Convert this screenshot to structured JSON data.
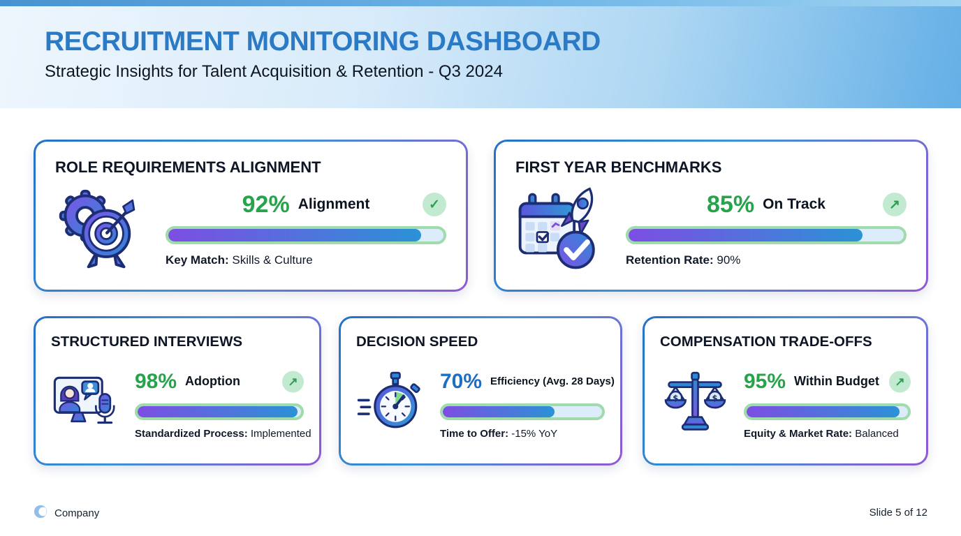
{
  "slide": {
    "title": "RECRUITMENT MONITORING DASHBOARD",
    "subtitle": "Strategic Insights for Talent Acquisition & Retention - Q3 2024"
  },
  "cards": [
    {
      "title": "ROLE REQUIREMENTS ALIGNMENT",
      "icon": "gear-target",
      "value": "92%",
      "value_color": "#27a34b",
      "label": "Alignment",
      "badge": "check",
      "progress": 92,
      "caption_bold": "Key Match:",
      "caption_text": "Skills & Culture"
    },
    {
      "title": "FIRST YEAR BENCHMARKS",
      "icon": "calendar-rocket",
      "value": "85%",
      "value_color": "#27a34b",
      "label": "On Track",
      "badge": "arrow-up-right",
      "progress": 85,
      "caption_bold": "Retention Rate:",
      "caption_text": "90%"
    },
    {
      "title": "STRUCTURED INTERVIEWS",
      "icon": "video-interview",
      "value": "98%",
      "value_color": "#27a34b",
      "label": "Adoption",
      "badge": "arrow-up-right",
      "progress": 98,
      "caption_bold": "Standardized Process:",
      "caption_text": "Implemented"
    },
    {
      "title": "DECISION SPEED",
      "icon": "stopwatch",
      "value": "70%",
      "value_color": "#1d6fc3",
      "label": "Efficiency (Avg. 28 Days)",
      "badge": null,
      "progress": 70,
      "caption_bold": "Time to Offer:",
      "caption_text": "-15% YoY"
    },
    {
      "title": "COMPENSATION TRADE-OFFS",
      "icon": "balance-scale",
      "value": "95%",
      "value_color": "#27a34b",
      "label": "Within Budget",
      "badge": "arrow-up-right",
      "progress": 95,
      "caption_bold": "Equity & Market Rate:",
      "caption_text": "Balanced"
    }
  ],
  "footer": {
    "company": "Company",
    "slide_number": "Slide 5 of 12"
  },
  "colors": {
    "title_blue": "#2b7ac6",
    "value_green": "#27a34b",
    "value_blue": "#1d6fc3",
    "bar_border_green": "#9fdbac",
    "bar_fill_start": "#7d4ee3",
    "bar_fill_end": "#2b92d6",
    "badge_bg": "#c2ead0",
    "badge_glyph": "#2f9e52",
    "card_border_start": "#2471c6",
    "card_border_end": "#9157d4"
  }
}
